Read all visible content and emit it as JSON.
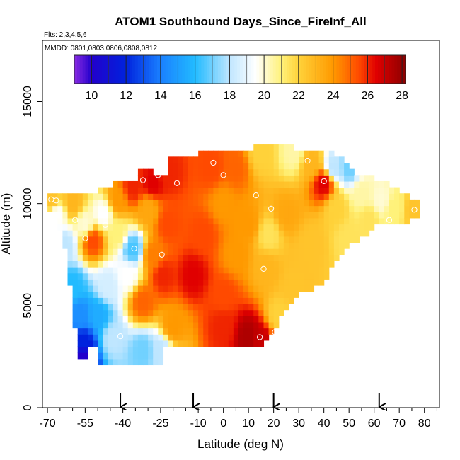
{
  "chart_data": {
    "type": "heatmap",
    "title": "ATOM1 Southbound Days_Since_FireInf_All",
    "flights_note": "Flts: 2,3,4,5,6",
    "dates_note": "MMDD: 0801,0803,0806,0808,0812",
    "xlabel": "Latitude (deg N)",
    "ylabel": "Altitude (m)",
    "xlim": [
      -72,
      86
    ],
    "ylim": [
      0,
      18000
    ],
    "x_ticks": [
      -70,
      -55,
      -40,
      -25,
      -10,
      0,
      10,
      20,
      30,
      40,
      50,
      60,
      70,
      80
    ],
    "x_tick_labels": [
      "-70",
      "-55",
      "-40",
      "-25",
      "-10",
      "0",
      "10",
      "20",
      "30",
      "40",
      "50",
      "60",
      "70",
      "80"
    ],
    "x_minor_ticks": [
      -65,
      -60,
      -50,
      -45,
      -35,
      -30,
      -20,
      -15,
      -5,
      5,
      15,
      25,
      35,
      45,
      55,
      65,
      75,
      85
    ],
    "y_ticks": [
      0,
      5000,
      10000,
      15000
    ],
    "y_tick_labels": [
      "0",
      "5000",
      "10000",
      "15000"
    ],
    "colorbar": {
      "min": 9,
      "max": 28.2,
      "ticks": [
        10,
        12,
        14,
        16,
        18,
        20,
        22,
        24,
        26,
        28
      ],
      "tick_labels": [
        "10",
        "12",
        "14",
        "16",
        "18",
        "20",
        "22",
        "24",
        "26",
        "28"
      ],
      "stops": [
        {
          "v": 9,
          "c": "#8a2be2"
        },
        {
          "v": 10,
          "c": "#2200cc"
        },
        {
          "v": 12,
          "c": "#0022dd"
        },
        {
          "v": 14,
          "c": "#1a80ff"
        },
        {
          "v": 16,
          "c": "#22bbff"
        },
        {
          "v": 18,
          "c": "#bfe6ff"
        },
        {
          "v": 19.5,
          "c": "#ffffff"
        },
        {
          "v": 21,
          "c": "#fff27a"
        },
        {
          "v": 22,
          "c": "#ffd23a"
        },
        {
          "v": 24,
          "c": "#ff9900"
        },
        {
          "v": 25.5,
          "c": "#ff4a00"
        },
        {
          "v": 26.5,
          "c": "#e00000"
        },
        {
          "v": 28.2,
          "c": "#8b0000"
        }
      ]
    },
    "field_anchors": [
      {
        "lat": -68,
        "alt": 10200,
        "v": 22.5
      },
      {
        "lat": -66,
        "alt": 9500,
        "v": 19.5
      },
      {
        "lat": -63,
        "alt": 8000,
        "v": 18
      },
      {
        "lat": -60,
        "alt": 6000,
        "v": 16
      },
      {
        "lat": -57,
        "alt": 4500,
        "v": 14.5
      },
      {
        "lat": -56,
        "alt": 3200,
        "v": 12
      },
      {
        "lat": -56,
        "alt": 2500,
        "v": 10
      },
      {
        "lat": -50,
        "alt": 4500,
        "v": 15.5
      },
      {
        "lat": -46,
        "alt": 6000,
        "v": 18.5
      },
      {
        "lat": -60,
        "alt": 10000,
        "v": 23
      },
      {
        "lat": -55,
        "alt": 9000,
        "v": 20
      },
      {
        "lat": -52,
        "alt": 8200,
        "v": 25.5
      },
      {
        "lat": -48,
        "alt": 9500,
        "v": 19.5
      },
      {
        "lat": -42,
        "alt": 8500,
        "v": 21
      },
      {
        "lat": -36,
        "alt": 7800,
        "v": 16.5
      },
      {
        "lat": -38,
        "alt": 6500,
        "v": 19.5
      },
      {
        "lat": -44,
        "alt": 3400,
        "v": 18
      },
      {
        "lat": -32,
        "alt": 2800,
        "v": 17
      },
      {
        "lat": -25,
        "alt": 2800,
        "v": 18
      },
      {
        "lat": -30,
        "alt": 9700,
        "v": 23.5
      },
      {
        "lat": -28,
        "alt": 11000,
        "v": 26.5
      },
      {
        "lat": -36,
        "alt": 10800,
        "v": 26
      },
      {
        "lat": -42,
        "alt": 10200,
        "v": 24
      },
      {
        "lat": -22,
        "alt": 11500,
        "v": 26
      },
      {
        "lat": -28,
        "alt": 7500,
        "v": 24.5
      },
      {
        "lat": -22,
        "alt": 9000,
        "v": 25.5
      },
      {
        "lat": -24,
        "alt": 6500,
        "v": 26
      },
      {
        "lat": -32,
        "alt": 5200,
        "v": 25
      },
      {
        "lat": -20,
        "alt": 4000,
        "v": 24
      },
      {
        "lat": -12,
        "alt": 6500,
        "v": 26.5
      },
      {
        "lat": -8,
        "alt": 8500,
        "v": 25.5
      },
      {
        "lat": -5,
        "alt": 11800,
        "v": 25.5
      },
      {
        "lat": 0,
        "alt": 10000,
        "v": 24
      },
      {
        "lat": 5,
        "alt": 11800,
        "v": 25
      },
      {
        "lat": 0,
        "alt": 5500,
        "v": 25.5
      },
      {
        "lat": 0,
        "alt": 4000,
        "v": 26
      },
      {
        "lat": 10,
        "alt": 3500,
        "v": 27.5
      },
      {
        "lat": 15,
        "alt": 3300,
        "v": 27
      },
      {
        "lat": 5,
        "alt": 7500,
        "v": 24
      },
      {
        "lat": 10,
        "alt": 9000,
        "v": 24
      },
      {
        "lat": 15,
        "alt": 12500,
        "v": 22
      },
      {
        "lat": 18,
        "alt": 8500,
        "v": 21.5
      },
      {
        "lat": 17,
        "alt": 6800,
        "v": 23
      },
      {
        "lat": 22,
        "alt": 4500,
        "v": 22
      },
      {
        "lat": 28,
        "alt": 12500,
        "v": 20.5
      },
      {
        "lat": 28,
        "alt": 6000,
        "v": 22.5
      },
      {
        "lat": 25,
        "alt": 9500,
        "v": 23.5
      },
      {
        "lat": 35,
        "alt": 8000,
        "v": 22.5
      },
      {
        "lat": 35,
        "alt": 12000,
        "v": 23
      },
      {
        "lat": 40,
        "alt": 11000,
        "v": 26.5
      },
      {
        "lat": 44,
        "alt": 11800,
        "v": 18
      },
      {
        "lat": 50,
        "alt": 11800,
        "v": 17
      },
      {
        "lat": 45,
        "alt": 9800,
        "v": 22
      },
      {
        "lat": 55,
        "alt": 10500,
        "v": 20.5
      },
      {
        "lat": 50,
        "alt": 8300,
        "v": 21.5
      },
      {
        "lat": 58,
        "alt": 9200,
        "v": 21.5
      },
      {
        "lat": 63,
        "alt": 10200,
        "v": 20
      },
      {
        "lat": 68,
        "alt": 9800,
        "v": 21
      },
      {
        "lat": 76,
        "alt": 9700,
        "v": 22.5
      }
    ],
    "observation_points": [
      {
        "lat": -68.5,
        "alt": 10200
      },
      {
        "lat": -66.5,
        "alt": 10150
      },
      {
        "lat": -59,
        "alt": 9200
      },
      {
        "lat": -55,
        "alt": 8300
      },
      {
        "lat": -47,
        "alt": 8950
      },
      {
        "lat": -35.5,
        "alt": 7800
      },
      {
        "lat": -24.5,
        "alt": 7500
      },
      {
        "lat": -41,
        "alt": 3500
      },
      {
        "lat": -32,
        "alt": 11150
      },
      {
        "lat": -26,
        "alt": 11400
      },
      {
        "lat": -18.5,
        "alt": 11000
      },
      {
        "lat": -4,
        "alt": 12000
      },
      {
        "lat": 0,
        "alt": 11400
      },
      {
        "lat": 13,
        "alt": 10400
      },
      {
        "lat": 16,
        "alt": 6800
      },
      {
        "lat": 14.5,
        "alt": 3450
      },
      {
        "lat": 20.5,
        "alt": 3700
      },
      {
        "lat": 19,
        "alt": 9750
      },
      {
        "lat": 33.5,
        "alt": 12100
      },
      {
        "lat": 40,
        "alt": 11100
      },
      {
        "lat": 66,
        "alt": 9200
      },
      {
        "lat": 76,
        "alt": 9700
      }
    ],
    "arrows_at_latitude": [
      -41,
      -12,
      20,
      62
    ]
  }
}
